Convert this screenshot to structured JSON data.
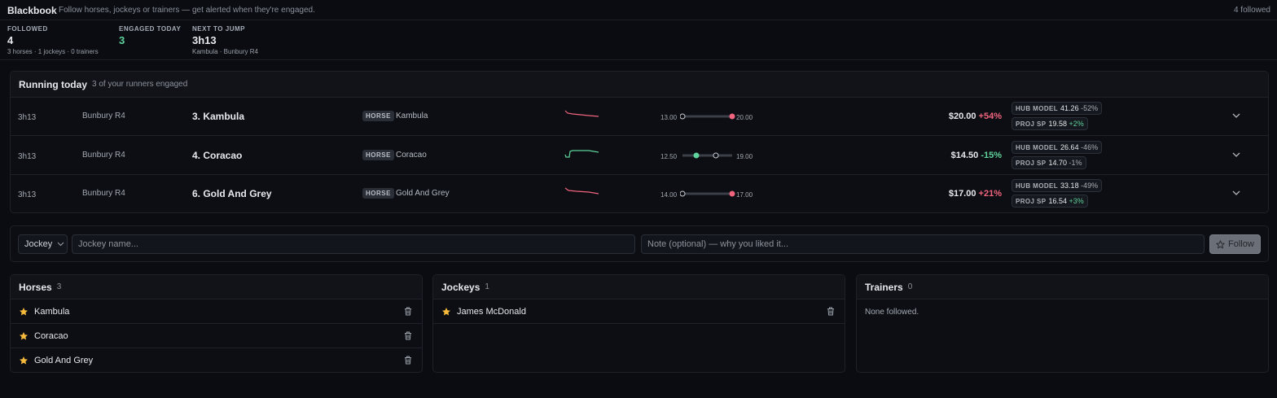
{
  "header": {
    "title": "Blackbook",
    "subtitle": "Follow horses, jockeys or trainers — get alerted when they're engaged.",
    "followed_count": "4 followed"
  },
  "stats": [
    {
      "label": "FOLLOWED",
      "value": "4",
      "sub": "3 horses · 1 jockeys · 0 trainers"
    },
    {
      "label": "ENGAGED TODAY",
      "value": "3"
    },
    {
      "label": "NEXT TO JUMP",
      "value": "3h13",
      "sub": "Kambula · Bunbury R4"
    }
  ],
  "running": {
    "title": "Running today",
    "subtitle": "3 of your runners engaged",
    "rows": [
      {
        "time": "3h13",
        "race": "Bunbury R4",
        "runner": "3. Kambula",
        "tag": "HORSE",
        "name": "Kambula",
        "low": "13.00",
        "high": "20.00",
        "price": "$20.00",
        "change": "+54%",
        "hub_label": "HUB MODEL",
        "hub_value": "41.26",
        "hub_diff": "-52%",
        "proj_label": "PROJ SP",
        "proj_value": "19.58",
        "proj_diff": "+2%"
      },
      {
        "time": "3h13",
        "race": "Bunbury R4",
        "runner": "4. Coracao",
        "tag": "HORSE",
        "name": "Coracao",
        "low": "12.50",
        "high": "19.00",
        "price": "$14.50",
        "change": "-15%",
        "hub_label": "HUB MODEL",
        "hub_value": "26.64",
        "hub_diff": "-46%",
        "proj_label": "PROJ SP",
        "proj_value": "14.70",
        "proj_diff": "-1%"
      },
      {
        "time": "3h13",
        "race": "Bunbury R4",
        "runner": "6. Gold And Grey",
        "tag": "HORSE",
        "name": "Gold And Grey",
        "low": "14.00",
        "high": "17.00",
        "price": "$17.00",
        "change": "+21%",
        "hub_label": "HUB MODEL",
        "hub_value": "33.18",
        "hub_diff": "-49%",
        "proj_label": "PROJ SP",
        "proj_value": "16.54",
        "proj_diff": "+3%"
      }
    ]
  },
  "form": {
    "type": "Jockey",
    "name_placeholder": "Jockey name...",
    "note_placeholder": "Note (optional) — why you liked it...",
    "button": "Follow"
  },
  "lists": [
    {
      "title": "Horses",
      "count": "3",
      "items": [
        "Kambula",
        "Coracao",
        "Gold And Grey"
      ]
    },
    {
      "title": "Jockeys",
      "count": "1",
      "items": [
        "James McDonald"
      ]
    },
    {
      "title": "Trainers",
      "count": "0",
      "empty": "None followed."
    }
  ]
}
